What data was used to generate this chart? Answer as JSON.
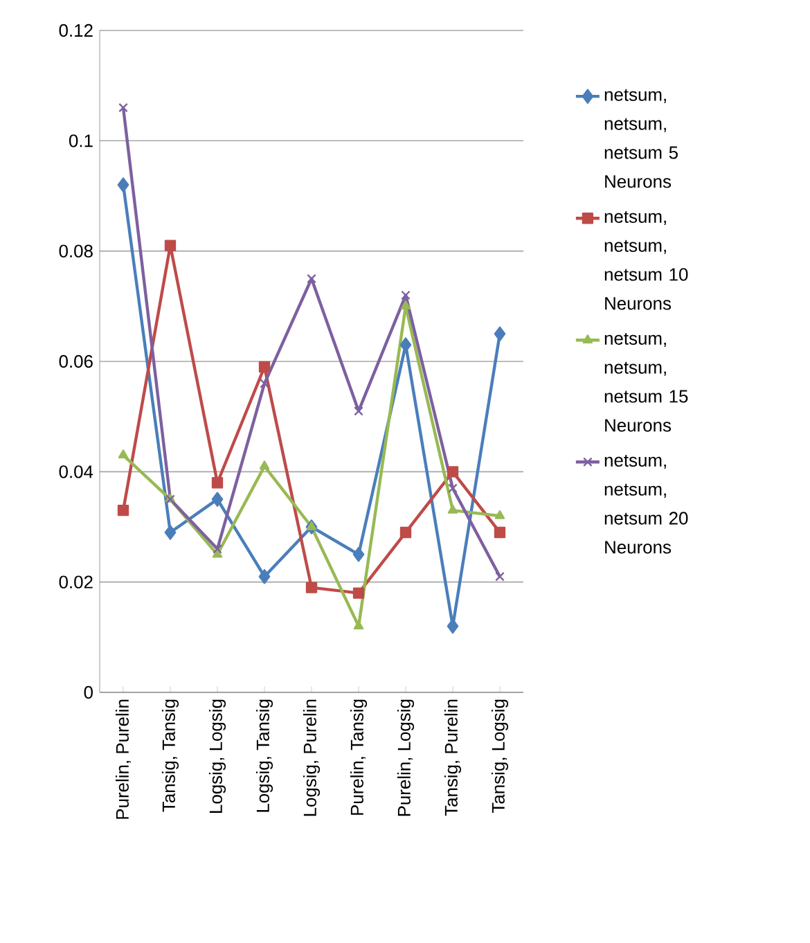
{
  "chart_data": {
    "type": "line",
    "categories": [
      "Purelin, Purelin",
      "Tansig, Tansig",
      "Logsig, Logsig",
      "Logsig, Tansig",
      "Logsig, Purelin",
      "Purelin, Tansig",
      "Purelin, Logsig",
      "Tansig, Purelin",
      "Tansig, Logsig"
    ],
    "series": [
      {
        "name": "netsum, netsum, netsum 5 Neurons",
        "color": "#4a7ebb",
        "marker": "diamond",
        "values": [
          0.092,
          0.029,
          0.035,
          0.021,
          0.03,
          0.025,
          0.063,
          0.012,
          0.065
        ]
      },
      {
        "name": "netsum, netsum, netsum 10 Neurons",
        "color": "#be4b48",
        "marker": "square",
        "values": [
          0.033,
          0.081,
          0.038,
          0.059,
          0.019,
          0.018,
          0.029,
          0.04,
          0.029
        ]
      },
      {
        "name": "netsum, netsum, netsum 15 Neurons",
        "color": "#98b954",
        "marker": "triangle",
        "values": [
          0.043,
          0.035,
          0.025,
          0.041,
          0.03,
          0.012,
          0.07,
          0.033,
          0.032
        ]
      },
      {
        "name": "netsum, netsum, netsum 20 Neurons",
        "color": "#7d60a0",
        "marker": "cross",
        "values": [
          0.106,
          0.035,
          0.026,
          0.056,
          0.075,
          0.051,
          0.072,
          0.037,
          0.021
        ]
      }
    ],
    "ylim": [
      0,
      0.12
    ],
    "yticks": [
      0,
      0.02,
      0.04,
      0.06,
      0.08,
      0.1,
      0.12
    ],
    "grid": "y",
    "legend": "right"
  }
}
